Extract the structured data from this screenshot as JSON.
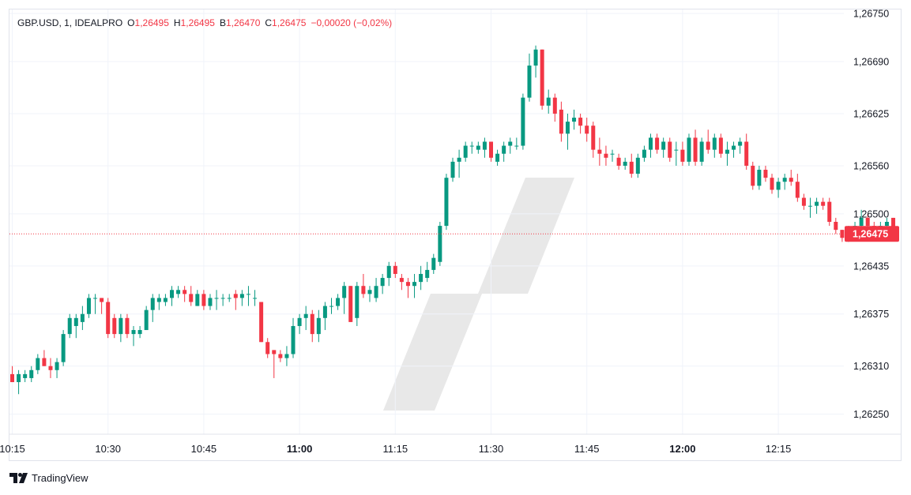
{
  "legend": {
    "symbol": "GBP.USD, 1, IDEALPRO",
    "open_key": "O",
    "open": "1,26495",
    "high_key": "H",
    "high": "1,26495",
    "low_key": "B",
    "low": "1,26470",
    "close_key": "C",
    "close": "1,26475",
    "change": "−0,00020 (−0,02%)"
  },
  "brand": "TradingView",
  "colors": {
    "up": "#089981",
    "down": "#f23645",
    "grid": "#f0f3fa",
    "border": "#e0e3eb",
    "watermark": "#e8e8e8"
  },
  "chart_data": {
    "type": "candlestick",
    "title": "",
    "ylim": [
      1.26225,
      1.26755
    ],
    "y_ticks": [
      1.2625,
      1.2631,
      1.26375,
      1.26435,
      1.265,
      1.2656,
      1.26625,
      1.2669,
      1.2675
    ],
    "y_tick_labels": [
      "1,26250",
      "1,26310",
      "1,26375",
      "1,26435",
      "1,26500",
      "1,26560",
      "1,26625",
      "1,26690",
      "1,26750"
    ],
    "x_ticks": [
      {
        "label": "10:15",
        "minute": 0,
        "bold": false
      },
      {
        "label": "10:30",
        "minute": 15,
        "bold": false
      },
      {
        "label": "10:45",
        "minute": 30,
        "bold": false
      },
      {
        "label": "11:00",
        "minute": 45,
        "bold": true
      },
      {
        "label": "11:15",
        "minute": 60,
        "bold": false
      },
      {
        "label": "11:30",
        "minute": 75,
        "bold": false
      },
      {
        "label": "11:45",
        "minute": 90,
        "bold": false
      },
      {
        "label": "12:00",
        "minute": 105,
        "bold": true
      },
      {
        "label": "12:15",
        "minute": 120,
        "bold": false
      }
    ],
    "current_price": 1.26475,
    "current_price_label": "1,26475",
    "candles": [
      [
        1.263,
        1.2631,
        1.2629,
        1.2629
      ],
      [
        1.2629,
        1.26305,
        1.26275,
        1.263
      ],
      [
        1.26295,
        1.26305,
        1.2629,
        1.263
      ],
      [
        1.26295,
        1.2631,
        1.2629,
        1.26305
      ],
      [
        1.26305,
        1.26325,
        1.263,
        1.2632
      ],
      [
        1.2632,
        1.2633,
        1.2631,
        1.2631
      ],
      [
        1.2631,
        1.2632,
        1.26295,
        1.26305
      ],
      [
        1.26305,
        1.2632,
        1.26295,
        1.26315
      ],
      [
        1.26315,
        1.26355,
        1.2631,
        1.2635
      ],
      [
        1.2635,
        1.26375,
        1.26345,
        1.2637
      ],
      [
        1.2636,
        1.26375,
        1.26345,
        1.2637
      ],
      [
        1.26365,
        1.26385,
        1.26355,
        1.26375
      ],
      [
        1.26375,
        1.264,
        1.2637,
        1.26395
      ],
      [
        1.26395,
        1.264,
        1.26375,
        1.26395
      ],
      [
        1.26395,
        1.26395,
        1.26375,
        1.2639
      ],
      [
        1.2639,
        1.26395,
        1.26345,
        1.2635
      ],
      [
        1.2637,
        1.26375,
        1.26345,
        1.2635
      ],
      [
        1.2635,
        1.26375,
        1.2634,
        1.2637
      ],
      [
        1.2637,
        1.26375,
        1.26345,
        1.2635
      ],
      [
        1.2635,
        1.2636,
        1.26335,
        1.26355
      ],
      [
        1.2635,
        1.2636,
        1.26345,
        1.26355
      ],
      [
        1.26355,
        1.26385,
        1.26355,
        1.2638
      ],
      [
        1.2638,
        1.264,
        1.26365,
        1.26395
      ],
      [
        1.2639,
        1.264,
        1.2638,
        1.26395
      ],
      [
        1.2639,
        1.264,
        1.26385,
        1.26395
      ],
      [
        1.26395,
        1.2641,
        1.26385,
        1.26405
      ],
      [
        1.264,
        1.2641,
        1.26395,
        1.26405
      ],
      [
        1.26405,
        1.2641,
        1.2639,
        1.264
      ],
      [
        1.264,
        1.2641,
        1.26385,
        1.2639
      ],
      [
        1.26385,
        1.26405,
        1.26385,
        1.264
      ],
      [
        1.264,
        1.26405,
        1.2638,
        1.26385
      ],
      [
        1.26385,
        1.264,
        1.2638,
        1.26395
      ],
      [
        1.26395,
        1.26405,
        1.2638,
        1.26395
      ],
      [
        1.26395,
        1.264,
        1.26385,
        1.26395
      ],
      [
        1.26395,
        1.264,
        1.2639,
        1.26395
      ],
      [
        1.264,
        1.26405,
        1.2638,
        1.26395
      ],
      [
        1.26395,
        1.26405,
        1.26385,
        1.264
      ],
      [
        1.264,
        1.2641,
        1.26385,
        1.264
      ],
      [
        1.26395,
        1.26405,
        1.26385,
        1.26395
      ],
      [
        1.2639,
        1.2639,
        1.2634,
        1.2634
      ],
      [
        1.2634,
        1.26345,
        1.2632,
        1.26325
      ],
      [
        1.2633,
        1.2633,
        1.26295,
        1.26325
      ],
      [
        1.26325,
        1.2633,
        1.26315,
        1.2632
      ],
      [
        1.2632,
        1.26335,
        1.2631,
        1.26325
      ],
      [
        1.26325,
        1.2637,
        1.2632,
        1.2636
      ],
      [
        1.2636,
        1.26375,
        1.2635,
        1.2637
      ],
      [
        1.2637,
        1.26385,
        1.26355,
        1.26375
      ],
      [
        1.26375,
        1.2638,
        1.2634,
        1.2635
      ],
      [
        1.2635,
        1.2638,
        1.2634,
        1.2637
      ],
      [
        1.2637,
        1.2639,
        1.26355,
        1.26385
      ],
      [
        1.26385,
        1.26395,
        1.26375,
        1.26385
      ],
      [
        1.26385,
        1.264,
        1.2638,
        1.26395
      ],
      [
        1.26395,
        1.26415,
        1.26375,
        1.2641
      ],
      [
        1.2641,
        1.2641,
        1.26365,
        1.26365
      ],
      [
        1.2637,
        1.26415,
        1.2636,
        1.2641
      ],
      [
        1.2641,
        1.26425,
        1.26395,
        1.264
      ],
      [
        1.264,
        1.2641,
        1.2639,
        1.26405
      ],
      [
        1.26395,
        1.2642,
        1.2639,
        1.2641
      ],
      [
        1.2641,
        1.26425,
        1.264,
        1.2642
      ],
      [
        1.2642,
        1.2644,
        1.2641,
        1.26435
      ],
      [
        1.26435,
        1.2644,
        1.2642,
        1.26425
      ],
      [
        1.2642,
        1.26425,
        1.26405,
        1.26415
      ],
      [
        1.26415,
        1.2642,
        1.26395,
        1.2641
      ],
      [
        1.2641,
        1.26425,
        1.26395,
        1.26415
      ],
      [
        1.26415,
        1.26435,
        1.26405,
        1.26425
      ],
      [
        1.2642,
        1.2644,
        1.26415,
        1.2643
      ],
      [
        1.2643,
        1.2645,
        1.26425,
        1.26445
      ],
      [
        1.2644,
        1.2649,
        1.26435,
        1.26485
      ],
      [
        1.26485,
        1.2655,
        1.2648,
        1.26545
      ],
      [
        1.26545,
        1.2657,
        1.2654,
        1.26565
      ],
      [
        1.26565,
        1.2658,
        1.26545,
        1.2657
      ],
      [
        1.2657,
        1.2659,
        1.26565,
        1.26585
      ],
      [
        1.26585,
        1.2659,
        1.26575,
        1.26585
      ],
      [
        1.2658,
        1.2659,
        1.26575,
        1.26585
      ],
      [
        1.2658,
        1.26595,
        1.2657,
        1.2659
      ],
      [
        1.2659,
        1.2659,
        1.26565,
        1.2657
      ],
      [
        1.26565,
        1.2658,
        1.2656,
        1.26575
      ],
      [
        1.26575,
        1.2659,
        1.26565,
        1.26585
      ],
      [
        1.26585,
        1.26595,
        1.26575,
        1.2659
      ],
      [
        1.26585,
        1.26595,
        1.2658,
        1.26585
      ],
      [
        1.26585,
        1.2665,
        1.2658,
        1.26645
      ],
      [
        1.26645,
        1.267,
        1.2664,
        1.26685
      ],
      [
        1.26685,
        1.2671,
        1.2667,
        1.26705
      ],
      [
        1.26705,
        1.26705,
        1.2663,
        1.26635
      ],
      [
        1.26635,
        1.26655,
        1.26625,
        1.26645
      ],
      [
        1.26645,
        1.2665,
        1.26615,
        1.26625
      ],
      [
        1.2663,
        1.2664,
        1.2659,
        1.266
      ],
      [
        1.266,
        1.26625,
        1.2658,
        1.26615
      ],
      [
        1.26615,
        1.2663,
        1.26605,
        1.2662
      ],
      [
        1.2662,
        1.26625,
        1.266,
        1.2661
      ],
      [
        1.2661,
        1.2662,
        1.2659,
        1.266
      ],
      [
        1.2661,
        1.26615,
        1.2657,
        1.2658
      ],
      [
        1.2658,
        1.26595,
        1.2656,
        1.26575
      ],
      [
        1.26575,
        1.26585,
        1.2656,
        1.2657
      ],
      [
        1.26575,
        1.2658,
        1.26565,
        1.26575
      ],
      [
        1.2657,
        1.26575,
        1.26555,
        1.2656
      ],
      [
        1.2656,
        1.2657,
        1.26555,
        1.26565
      ],
      [
        1.26565,
        1.26575,
        1.26545,
        1.2655
      ],
      [
        1.2655,
        1.26575,
        1.26545,
        1.2657
      ],
      [
        1.2657,
        1.26585,
        1.26565,
        1.2658
      ],
      [
        1.2658,
        1.266,
        1.2657,
        1.26595
      ],
      [
        1.26595,
        1.266,
        1.26575,
        1.2658
      ],
      [
        1.2658,
        1.26595,
        1.2657,
        1.2659
      ],
      [
        1.2659,
        1.26595,
        1.26565,
        1.2657
      ],
      [
        1.2658,
        1.2659,
        1.2656,
        1.2658
      ],
      [
        1.2658,
        1.2659,
        1.2656,
        1.26565
      ],
      [
        1.26565,
        1.266,
        1.2656,
        1.26595
      ],
      [
        1.26595,
        1.26605,
        1.2656,
        1.26565
      ],
      [
        1.26565,
        1.26595,
        1.2656,
        1.2659
      ],
      [
        1.2659,
        1.26605,
        1.26575,
        1.2658
      ],
      [
        1.2658,
        1.266,
        1.2657,
        1.26595
      ],
      [
        1.26595,
        1.266,
        1.2657,
        1.26575
      ],
      [
        1.26575,
        1.2659,
        1.2656,
        1.2658
      ],
      [
        1.2658,
        1.2659,
        1.2657,
        1.26585
      ],
      [
        1.26585,
        1.26595,
        1.26575,
        1.2659
      ],
      [
        1.2659,
        1.266,
        1.26555,
        1.2656
      ],
      [
        1.2656,
        1.26565,
        1.2653,
        1.26535
      ],
      [
        1.26535,
        1.2656,
        1.2653,
        1.26555
      ],
      [
        1.26555,
        1.2656,
        1.2654,
        1.26545
      ],
      [
        1.26545,
        1.2655,
        1.26525,
        1.2653
      ],
      [
        1.2653,
        1.26545,
        1.2652,
        1.2654
      ],
      [
        1.2654,
        1.2655,
        1.2653,
        1.26545
      ],
      [
        1.26545,
        1.26555,
        1.26535,
        1.2654
      ],
      [
        1.2654,
        1.2655,
        1.26515,
        1.2652
      ],
      [
        1.2652,
        1.26525,
        1.26505,
        1.2651
      ],
      [
        1.2651,
        1.2652,
        1.26495,
        1.2651
      ],
      [
        1.2651,
        1.2652,
        1.265,
        1.26515
      ],
      [
        1.26515,
        1.2652,
        1.26505,
        1.2651
      ],
      [
        1.26515,
        1.2652,
        1.26485,
        1.2649
      ],
      [
        1.2649,
        1.26495,
        1.26475,
        1.2648
      ],
      [
        1.2648,
        1.2648,
        1.26465,
        1.2647
      ],
      [
        1.2647,
        1.26485,
        1.26465,
        1.2648
      ],
      [
        1.2648,
        1.2649,
        1.26475,
        1.26485
      ],
      [
        1.26485,
        1.26505,
        1.2648,
        1.26495
      ],
      [
        1.26495,
        1.265,
        1.26475,
        1.26485
      ],
      [
        1.26485,
        1.2649,
        1.26475,
        1.2648
      ],
      [
        1.2648,
        1.2649,
        1.2647,
        1.26485
      ],
      [
        1.26485,
        1.26495,
        1.2647,
        1.2649
      ],
      [
        1.26495,
        1.26495,
        1.2647,
        1.26475
      ]
    ]
  }
}
